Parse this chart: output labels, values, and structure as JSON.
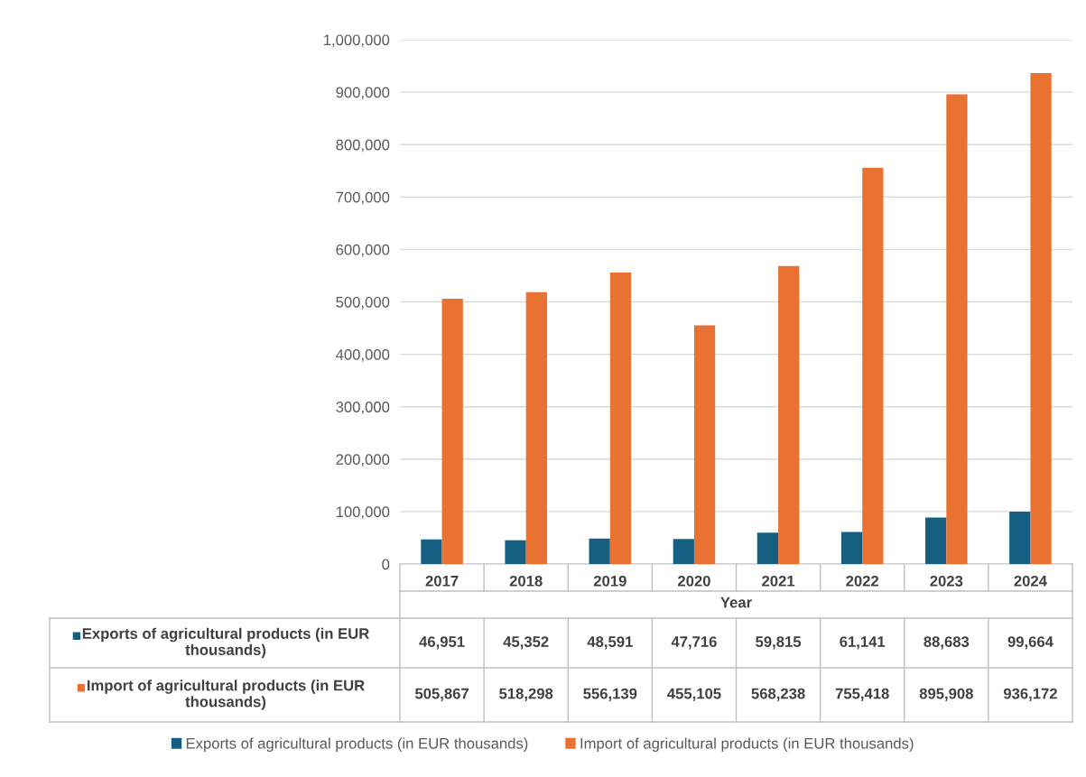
{
  "chart_data": {
    "type": "bar",
    "xlabel": "Year",
    "categories": [
      "2017",
      "2018",
      "2019",
      "2020",
      "2021",
      "2022",
      "2023",
      "2024"
    ],
    "series": [
      {
        "name": "Exports of agricultural products (in EUR thousands)",
        "color": "#156082",
        "values": [
          46951,
          45352,
          48591,
          47716,
          59815,
          61141,
          88683,
          99664
        ],
        "value_labels": [
          "46,951",
          "45,352",
          "48,591",
          "47,716",
          "59,815",
          "61,141",
          "88,683",
          "99,664"
        ]
      },
      {
        "name": "Import of agricultural products (in EUR thousands)",
        "color": "#e97132",
        "values": [
          505867,
          518298,
          556139,
          455105,
          568238,
          755418,
          895908,
          936172
        ],
        "value_labels": [
          "505,867",
          "518,298",
          "556,139",
          "455,105",
          "568,238",
          "755,418",
          "895,908",
          "936,172"
        ]
      }
    ],
    "ylim": [
      0,
      1000000
    ],
    "yticks": [
      0,
      {
        "value": 100000,
        "label": "100,000"
      },
      {
        "value": 200000,
        "label": "200,000"
      },
      {
        "value": 300000,
        "label": "300,000"
      },
      {
        "value": 400000,
        "label": "400,000"
      },
      {
        "value": 500000,
        "label": "500,000"
      },
      {
        "value": 600000,
        "label": "600,000"
      },
      {
        "value": 700000,
        "label": "700,000"
      },
      {
        "value": 800000,
        "label": "800,000"
      },
      {
        "value": 900000,
        "label": "900,000"
      },
      {
        "value": 1000000,
        "label": "1,000,000"
      }
    ],
    "grid": "y",
    "legend": "bottom"
  }
}
